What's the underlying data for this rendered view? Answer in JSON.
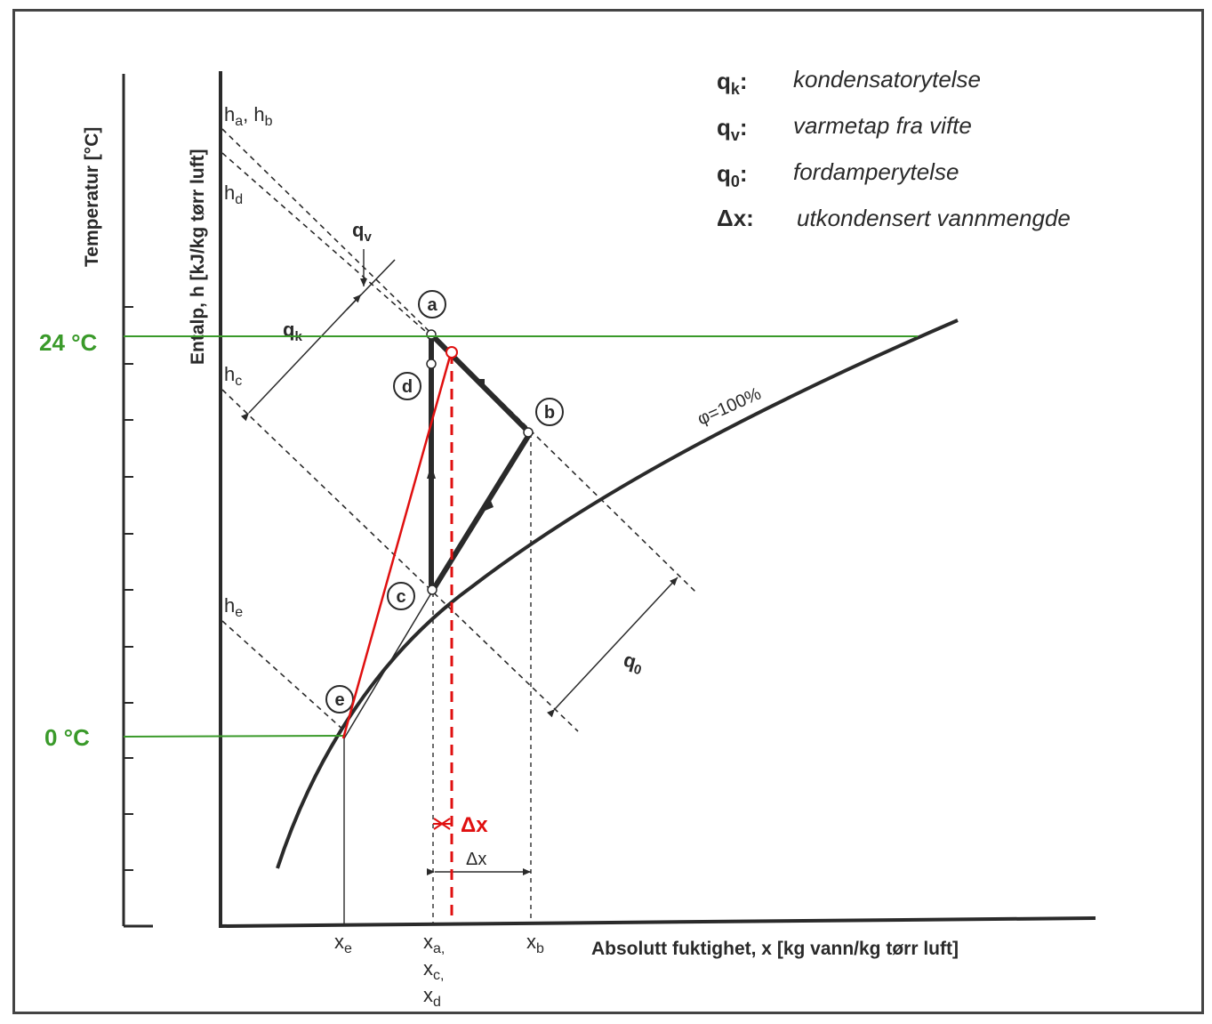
{
  "axes": {
    "temperature_label": "Temperatur [°C]",
    "enthalpy_label": "Entalp, h [kJ/kg tørr luft]",
    "humidity_label": "Absolutt fuktighet, x [kg vann/kg tørr luft]"
  },
  "temperatures": {
    "t24": "24 °C",
    "t0": "0 °C"
  },
  "legend": [
    {
      "symbol": "q",
      "sub": "k",
      "text": "kondensatorytelse"
    },
    {
      "symbol": "q",
      "sub": "v",
      "text": "varmetap fra vifte"
    },
    {
      "symbol": "q",
      "sub": "0",
      "text": "fordamperytelse"
    },
    {
      "symbol": "Δx",
      "sub": "",
      "text": "utkondensert vannmengde"
    }
  ],
  "enthalpy_lines": {
    "ha_hb": {
      "main": "h",
      "sub1": "a",
      "sep": ", h",
      "sub2": "b"
    },
    "hd": {
      "main": "h",
      "sub": "d"
    },
    "hc": {
      "main": "h",
      "sub": "c"
    },
    "he": {
      "main": "h",
      "sub": "e"
    }
  },
  "points": {
    "a": "a",
    "b": "b",
    "c": "c",
    "d": "d",
    "e": "e"
  },
  "flows": {
    "qv": {
      "main": "q",
      "sub": "v"
    },
    "qk": {
      "main": "q",
      "sub": "k"
    },
    "q0": {
      "main": "q",
      "sub": "0"
    }
  },
  "saturation_label": "φ=100%",
  "x_ticks": {
    "xe": {
      "main": "x",
      "sub": "e"
    },
    "xa": {
      "main": "x",
      "sub": "a,"
    },
    "xc": {
      "main": "x",
      "sub": "c,"
    },
    "xd": {
      "main": "x",
      "sub": "d"
    },
    "xb": {
      "main": "x",
      "sub": "b"
    }
  },
  "delta_x": {
    "black": "Δx",
    "red": "Δx"
  },
  "colors": {
    "green": "#3a9a2a",
    "red": "#e01010",
    "ink": "#2a2a2a"
  }
}
